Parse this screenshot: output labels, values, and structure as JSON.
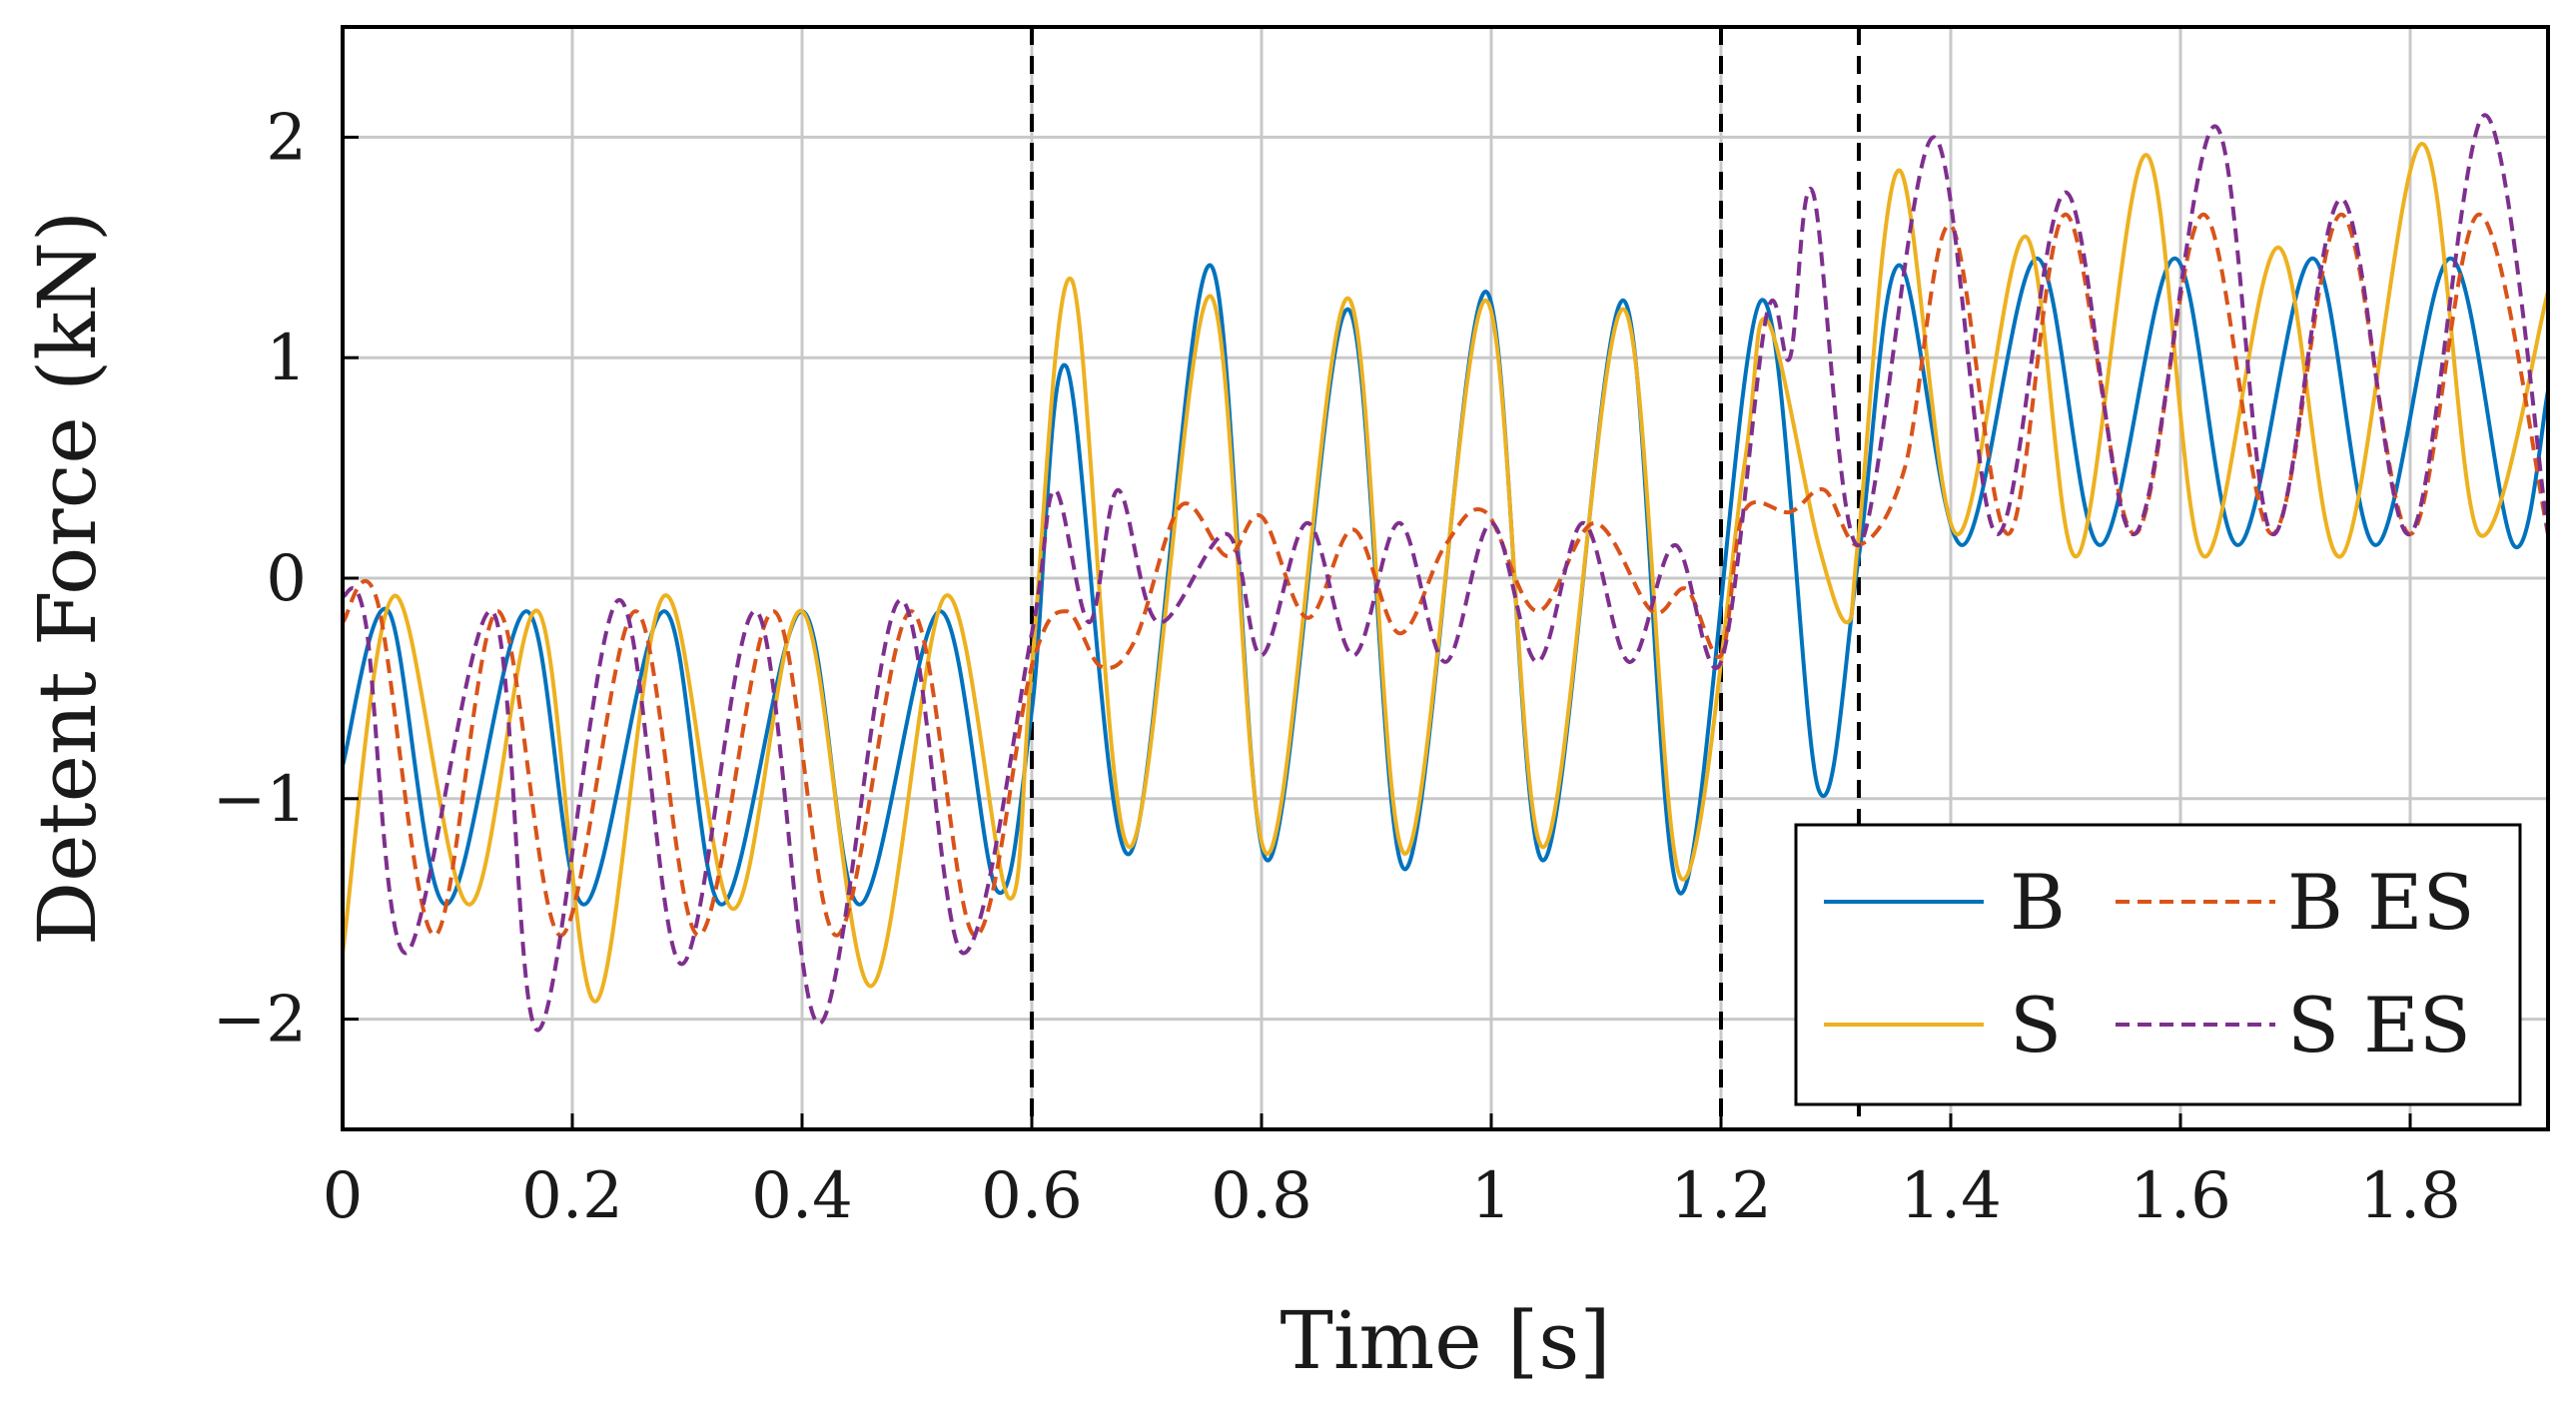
{
  "chart_data": {
    "type": "line",
    "title": "",
    "xlabel": "Time [s]",
    "ylabel": "Detent Force (kN)",
    "xlim": [
      0,
      1.92
    ],
    "ylim": [
      -2.5,
      2.5
    ],
    "grid": true,
    "xticks": [
      0,
      0.2,
      0.4,
      0.6,
      0.8,
      1,
      1.2,
      1.4,
      1.6,
      1.8
    ],
    "xtick_labels": [
      "0",
      "0.2",
      "0.4",
      "0.6",
      "0.8",
      "1",
      "1.2",
      "1.4",
      "1.6",
      "1.8"
    ],
    "yticks": [
      -2,
      -1,
      0,
      1,
      2
    ],
    "ytick_labels": [
      "−2",
      "−1",
      "0",
      "1",
      "2"
    ],
    "vertical_markers": [
      0.6,
      1.2,
      1.32
    ],
    "legend_position": "bottom-right",
    "series": [
      {
        "name": "B",
        "color": "#0072BD",
        "style": "solid",
        "points": [
          [
            0,
            -0.85
          ],
          [
            0.04,
            -0.15
          ],
          [
            0.09,
            -1.48
          ],
          [
            0.16,
            -0.15
          ],
          [
            0.21,
            -1.48
          ],
          [
            0.28,
            -0.15
          ],
          [
            0.33,
            -1.48
          ],
          [
            0.4,
            -0.15
          ],
          [
            0.45,
            -1.48
          ],
          [
            0.52,
            -0.15
          ],
          [
            0.57,
            -1.42
          ],
          [
            0.6,
            -0.6
          ],
          [
            0.63,
            0.96
          ],
          [
            0.685,
            -1.25
          ],
          [
            0.755,
            1.42
          ],
          [
            0.805,
            -1.28
          ],
          [
            0.875,
            1.22
          ],
          [
            0.925,
            -1.32
          ],
          [
            0.995,
            1.3
          ],
          [
            1.045,
            -1.28
          ],
          [
            1.115,
            1.26
          ],
          [
            1.165,
            -1.43
          ],
          [
            1.235,
            1.26
          ],
          [
            1.285,
            -0.96
          ],
          [
            1.32,
            0.1
          ],
          [
            1.355,
            1.42
          ],
          [
            1.41,
            0.15
          ],
          [
            1.475,
            1.45
          ],
          [
            1.53,
            0.15
          ],
          [
            1.595,
            1.45
          ],
          [
            1.65,
            0.15
          ],
          [
            1.715,
            1.45
          ],
          [
            1.77,
            0.15
          ],
          [
            1.835,
            1.45
          ],
          [
            1.89,
            0.15
          ],
          [
            1.92,
            0.85
          ]
        ]
      },
      {
        "name": "B ES",
        "color": "#D95319",
        "style": "dashed",
        "points": [
          [
            0,
            -0.2
          ],
          [
            0.03,
            -0.1
          ],
          [
            0.08,
            -1.62
          ],
          [
            0.135,
            -0.15
          ],
          [
            0.19,
            -1.62
          ],
          [
            0.255,
            -0.15
          ],
          [
            0.31,
            -1.62
          ],
          [
            0.375,
            -0.15
          ],
          [
            0.43,
            -1.62
          ],
          [
            0.495,
            -0.15
          ],
          [
            0.55,
            -1.62
          ],
          [
            0.6,
            -0.4
          ],
          [
            0.63,
            -0.15
          ],
          [
            0.66,
            -0.4
          ],
          [
            0.69,
            -0.28
          ],
          [
            0.73,
            0.33
          ],
          [
            0.77,
            0.1
          ],
          [
            0.8,
            0.28
          ],
          [
            0.84,
            -0.18
          ],
          [
            0.88,
            0.22
          ],
          [
            0.92,
            -0.25
          ],
          [
            0.96,
            0.15
          ],
          [
            0.995,
            0.3
          ],
          [
            1.04,
            -0.15
          ],
          [
            1.09,
            0.25
          ],
          [
            1.14,
            -0.15
          ],
          [
            1.17,
            -0.05
          ],
          [
            1.2,
            -0.35
          ],
          [
            1.22,
            0.3
          ],
          [
            1.26,
            0.3
          ],
          [
            1.29,
            0.4
          ],
          [
            1.32,
            0.15
          ],
          [
            1.36,
            0.5
          ],
          [
            1.4,
            1.6
          ],
          [
            1.45,
            0.2
          ],
          [
            1.5,
            1.65
          ],
          [
            1.56,
            0.2
          ],
          [
            1.62,
            1.65
          ],
          [
            1.68,
            0.2
          ],
          [
            1.74,
            1.65
          ],
          [
            1.8,
            0.2
          ],
          [
            1.86,
            1.65
          ],
          [
            1.92,
            0.2
          ]
        ]
      },
      {
        "name": "S",
        "color": "#EDB120",
        "style": "solid",
        "points": [
          [
            0,
            -1.7
          ],
          [
            0.045,
            -0.08
          ],
          [
            0.11,
            -1.48
          ],
          [
            0.17,
            -0.15
          ],
          [
            0.22,
            -1.92
          ],
          [
            0.28,
            -0.08
          ],
          [
            0.34,
            -1.5
          ],
          [
            0.4,
            -0.15
          ],
          [
            0.46,
            -1.85
          ],
          [
            0.525,
            -0.08
          ],
          [
            0.58,
            -1.45
          ],
          [
            0.6,
            -0.4
          ],
          [
            0.635,
            1.35
          ],
          [
            0.685,
            -1.22
          ],
          [
            0.755,
            1.28
          ],
          [
            0.805,
            -1.25
          ],
          [
            0.875,
            1.27
          ],
          [
            0.925,
            -1.25
          ],
          [
            0.995,
            1.26
          ],
          [
            1.045,
            -1.22
          ],
          [
            1.115,
            1.22
          ],
          [
            1.165,
            -1.36
          ],
          [
            1.22,
            0.5
          ],
          [
            1.24,
            1.17
          ],
          [
            1.285,
            0.15
          ],
          [
            1.31,
            -0.2
          ],
          [
            1.32,
            0.2
          ],
          [
            1.355,
            1.85
          ],
          [
            1.405,
            0.2
          ],
          [
            1.465,
            1.55
          ],
          [
            1.51,
            0.1
          ],
          [
            1.57,
            1.92
          ],
          [
            1.62,
            0.1
          ],
          [
            1.685,
            1.5
          ],
          [
            1.74,
            0.1
          ],
          [
            1.81,
            1.97
          ],
          [
            1.86,
            0.2
          ],
          [
            1.92,
            1.3
          ]
        ]
      },
      {
        "name": "S ES",
        "color": "#7E2F8E",
        "style": "dashed",
        "points": [
          [
            0,
            -0.08
          ],
          [
            0.02,
            -0.2
          ],
          [
            0.055,
            -1.7
          ],
          [
            0.13,
            -0.15
          ],
          [
            0.17,
            -2.05
          ],
          [
            0.24,
            -0.1
          ],
          [
            0.295,
            -1.75
          ],
          [
            0.36,
            -0.15
          ],
          [
            0.415,
            -2.02
          ],
          [
            0.485,
            -0.1
          ],
          [
            0.54,
            -1.7
          ],
          [
            0.6,
            -0.25
          ],
          [
            0.62,
            0.4
          ],
          [
            0.65,
            -0.2
          ],
          [
            0.675,
            0.4
          ],
          [
            0.71,
            -0.2
          ],
          [
            0.77,
            0.2
          ],
          [
            0.8,
            -0.35
          ],
          [
            0.84,
            0.25
          ],
          [
            0.88,
            -0.35
          ],
          [
            0.92,
            0.25
          ],
          [
            0.96,
            -0.38
          ],
          [
            1.0,
            0.25
          ],
          [
            1.04,
            -0.38
          ],
          [
            1.08,
            0.25
          ],
          [
            1.12,
            -0.38
          ],
          [
            1.16,
            0.15
          ],
          [
            1.2,
            -0.38
          ],
          [
            1.24,
            1.2
          ],
          [
            1.26,
            1.0
          ],
          [
            1.28,
            1.75
          ],
          [
            1.32,
            0.15
          ],
          [
            1.385,
            2.0
          ],
          [
            1.44,
            0.2
          ],
          [
            1.5,
            1.75
          ],
          [
            1.56,
            0.2
          ],
          [
            1.63,
            2.05
          ],
          [
            1.68,
            0.2
          ],
          [
            1.74,
            1.72
          ],
          [
            1.8,
            0.2
          ],
          [
            1.865,
            2.1
          ],
          [
            1.92,
            0.2
          ]
        ]
      }
    ]
  }
}
